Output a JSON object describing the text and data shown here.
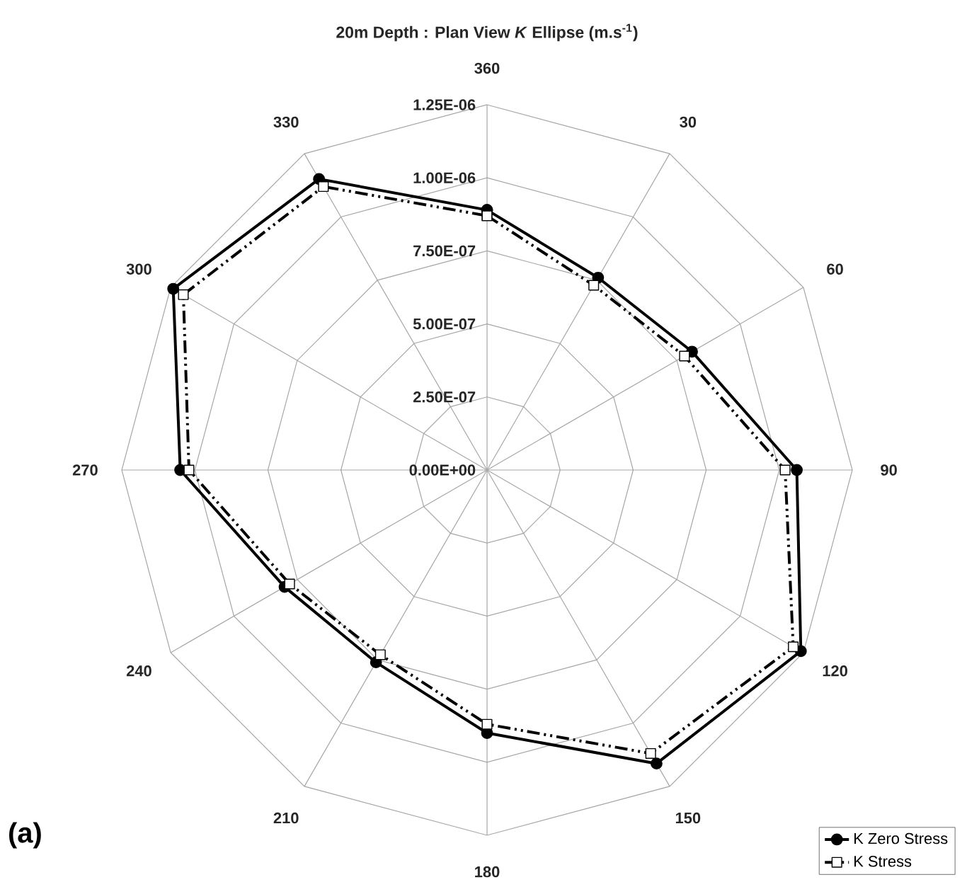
{
  "chart_data": {
    "type": "radar",
    "title": "20m Depth : Plan View *K* Ellipse (m.s$^{-1}$)",
    "categories": [
      "360",
      "30",
      "60",
      "90",
      "120",
      "150",
      "180",
      "210",
      "240",
      "270",
      "300",
      "330"
    ],
    "series": [
      {
        "name": "K Zero Stress",
        "color": "#000000",
        "marker": "circle",
        "line_style": "solid",
        "values": [
          8.9e-07,
          7.6e-07,
          8.1e-07,
          1.06e-06,
          1.24e-06,
          1.16e-06,
          9e-07,
          7.6e-07,
          8e-07,
          1.05e-06,
          1.24e-06,
          1.15e-06
        ]
      },
      {
        "name": "K Stress",
        "color": "#000000",
        "marker": "square",
        "line_style": "dashed",
        "values": [
          8.7e-07,
          7.3e-07,
          7.8e-07,
          1.02e-06,
          1.21e-06,
          1.12e-06,
          8.7e-07,
          7.3e-07,
          7.8e-07,
          1.02e-06,
          1.2e-06,
          1.12e-06
        ]
      }
    ],
    "ylim": [
      0,
      1.25e-06
    ],
    "yticks": [
      {
        "value": 0,
        "label": "0.00E+00"
      },
      {
        "value": 2.5e-07,
        "label": "2.50E-07"
      },
      {
        "value": 5e-07,
        "label": "5.00E-07"
      },
      {
        "value": 7.5e-07,
        "label": "7.50E-07"
      },
      {
        "value": 1e-06,
        "label": "1.00E-06"
      },
      {
        "value": 1.25e-06,
        "label": "1.25E-06"
      }
    ],
    "grid": true,
    "legend": "bottom right",
    "annotations": [
      "(a)"
    ]
  }
}
